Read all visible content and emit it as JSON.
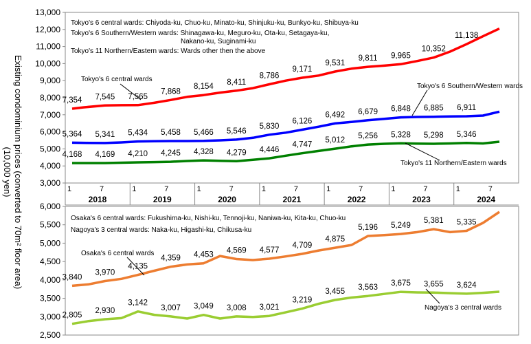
{
  "y_axis_label": "Existing condominium prices (converted to 70m² floor area)",
  "y_axis_unit": "(10,000 yen)",
  "chart_data": [
    {
      "type": "line",
      "panel": "Tokyo",
      "ylim": [
        3000,
        13000
      ],
      "yticks": [
        3000,
        4000,
        5000,
        6000,
        7000,
        8000,
        9000,
        10000,
        11000,
        12000,
        13000
      ],
      "ytick_labels": [
        "3,000",
        "4,000",
        "5,000",
        "6,000",
        "7,000",
        "8,000",
        "9,000",
        "10,000",
        "11,000",
        "12,000",
        "13,000"
      ],
      "x_start": "2018-01",
      "x_end": "2024-07",
      "legend_lines": [
        "Tokyo's 6 central wards: Chiyoda-ku, Chuo-ku, Minato-ku, Shinjuku-ku, Bunkyo-ku, Shibuya-ku",
        "Tokyo's 6 Southern/Western wards: Shinagawa-ku, Meguro-ku, Ota-ku, Setagaya-ku,",
        "Nakano-ku, Suginami-ku",
        "Tokyo's 11 Northern/Eastern wards: Wards other then the above"
      ],
      "series": [
        {
          "name": "Tokyo's 6 central wards",
          "color": "#ff0000",
          "values": [
            [
              "2018-01",
              7354
            ],
            [
              "2018-03",
              7430
            ],
            [
              "2018-07",
              7545
            ],
            [
              "2018-10",
              7560
            ],
            [
              "2019-01",
              7565
            ],
            [
              "2019-04",
              7700
            ],
            [
              "2019-07",
              7868
            ],
            [
              "2019-10",
              8050
            ],
            [
              "2020-01",
              8154
            ],
            [
              "2020-04",
              8300
            ],
            [
              "2020-07",
              8411
            ],
            [
              "2020-10",
              8560
            ],
            [
              "2021-01",
              8786
            ],
            [
              "2021-04",
              9000
            ],
            [
              "2021-07",
              9171
            ],
            [
              "2021-10",
              9300
            ],
            [
              "2022-01",
              9531
            ],
            [
              "2022-04",
              9700
            ],
            [
              "2022-07",
              9811
            ],
            [
              "2022-10",
              9880
            ],
            [
              "2023-01",
              9965
            ],
            [
              "2023-04",
              10150
            ],
            [
              "2023-07",
              10352
            ],
            [
              "2023-10",
              10700
            ],
            [
              "2024-01",
              11138
            ],
            [
              "2024-04",
              11600
            ],
            [
              "2024-07",
              12050
            ]
          ],
          "point_labels": [
            [
              "2018-01",
              "7,354"
            ],
            [
              "2018-07",
              "7,545"
            ],
            [
              "2019-01",
              "7,565"
            ],
            [
              "2019-07",
              "7,868"
            ],
            [
              "2020-01",
              "8,154"
            ],
            [
              "2020-07",
              "8,411"
            ],
            [
              "2021-01",
              "8,786"
            ],
            [
              "2021-07",
              "9,171"
            ],
            [
              "2022-01",
              "9,531"
            ],
            [
              "2022-07",
              "9,811"
            ],
            [
              "2023-01",
              "9,965"
            ],
            [
              "2023-07",
              "10,352"
            ],
            [
              "2024-01",
              "11,138"
            ]
          ]
        },
        {
          "name": "Tokyo's 6 Southern/Western wards",
          "color": "#0000ff",
          "values": [
            [
              "2018-01",
              5364
            ],
            [
              "2018-04",
              5350
            ],
            [
              "2018-07",
              5341
            ],
            [
              "2018-10",
              5380
            ],
            [
              "2019-01",
              5434
            ],
            [
              "2019-04",
              5450
            ],
            [
              "2019-07",
              5458
            ],
            [
              "2019-10",
              5460
            ],
            [
              "2020-01",
              5466
            ],
            [
              "2020-04",
              5500
            ],
            [
              "2020-07",
              5546
            ],
            [
              "2020-10",
              5650
            ],
            [
              "2021-01",
              5830
            ],
            [
              "2021-04",
              5950
            ],
            [
              "2021-07",
              6126
            ],
            [
              "2021-10",
              6300
            ],
            [
              "2022-01",
              6492
            ],
            [
              "2022-04",
              6580
            ],
            [
              "2022-07",
              6679
            ],
            [
              "2022-10",
              6760
            ],
            [
              "2023-01",
              6848
            ],
            [
              "2023-04",
              6870
            ],
            [
              "2023-07",
              6885
            ],
            [
              "2023-10",
              6900
            ],
            [
              "2024-01",
              6911
            ],
            [
              "2024-04",
              6950
            ],
            [
              "2024-07",
              7180
            ]
          ],
          "point_labels": [
            [
              "2018-01",
              "5,364"
            ],
            [
              "2018-07",
              "5,341"
            ],
            [
              "2019-01",
              "5,434"
            ],
            [
              "2019-07",
              "5,458"
            ],
            [
              "2020-01",
              "5,466"
            ],
            [
              "2020-07",
              "5,546"
            ],
            [
              "2021-01",
              "5,830"
            ],
            [
              "2021-07",
              "6,126"
            ],
            [
              "2022-01",
              "6,492"
            ],
            [
              "2022-07",
              "6,679"
            ],
            [
              "2023-01",
              "6,848"
            ],
            [
              "2023-07",
              "6,885"
            ],
            [
              "2024-01",
              "6,911"
            ]
          ]
        },
        {
          "name": "Tokyo's 11 Northern/Eastern wards",
          "color": "#008000",
          "values": [
            [
              "2018-01",
              4168
            ],
            [
              "2018-04",
              4170
            ],
            [
              "2018-07",
              4169
            ],
            [
              "2018-10",
              4190
            ],
            [
              "2019-01",
              4210
            ],
            [
              "2019-04",
              4225
            ],
            [
              "2019-07",
              4245
            ],
            [
              "2019-10",
              4290
            ],
            [
              "2020-01",
              4328
            ],
            [
              "2020-04",
              4300
            ],
            [
              "2020-07",
              4279
            ],
            [
              "2020-10",
              4360
            ],
            [
              "2021-01",
              4446
            ],
            [
              "2021-04",
              4600
            ],
            [
              "2021-07",
              4747
            ],
            [
              "2021-10",
              4880
            ],
            [
              "2022-01",
              5012
            ],
            [
              "2022-04",
              5150
            ],
            [
              "2022-07",
              5256
            ],
            [
              "2022-10",
              5300
            ],
            [
              "2023-01",
              5328
            ],
            [
              "2023-04",
              5310
            ],
            [
              "2023-07",
              5298
            ],
            [
              "2023-10",
              5320
            ],
            [
              "2024-01",
              5346
            ],
            [
              "2024-04",
              5320
            ],
            [
              "2024-07",
              5420
            ]
          ],
          "point_labels": [
            [
              "2018-01",
              "4,168"
            ],
            [
              "2018-07",
              "4,169"
            ],
            [
              "2019-01",
              "4,210"
            ],
            [
              "2019-07",
              "4,245"
            ],
            [
              "2020-01",
              "4,328"
            ],
            [
              "2020-07",
              "4,279"
            ],
            [
              "2021-01",
              "4,446"
            ],
            [
              "2021-07",
              "4,747"
            ],
            [
              "2022-01",
              "5,012"
            ],
            [
              "2022-07",
              "5,256"
            ],
            [
              "2023-01",
              "5,328"
            ],
            [
              "2023-07",
              "5,298"
            ],
            [
              "2024-01",
              "5,346"
            ]
          ]
        }
      ]
    },
    {
      "type": "line",
      "panel": "Osaka/Nagoya",
      "ylim": [
        2500,
        6000
      ],
      "yticks": [
        2500,
        3000,
        3500,
        4000,
        4500,
        5000,
        5500,
        6000
      ],
      "ytick_labels": [
        "2,500",
        "3,000",
        "3,500",
        "4,000",
        "4,500",
        "5,000",
        "5,500",
        "6,000"
      ],
      "x_start": "2018-01",
      "x_end": "2024-07",
      "legend_lines": [
        "Osaka's 6 central wards: Fukushima-ku, Nishi-ku, Tennoji-ku, Naniwa-ku, Kita-ku, Chuo-ku",
        "Nagoya's 3 central wards: Naka-ku, Higashi-ku, Chikusa-ku"
      ],
      "series": [
        {
          "name": "Osaka's 6 central wards",
          "color": "#ed7d31",
          "values": [
            [
              "2018-01",
              3840
            ],
            [
              "2018-04",
              3880
            ],
            [
              "2018-07",
              3970
            ],
            [
              "2018-10",
              4030
            ],
            [
              "2019-01",
              4135
            ],
            [
              "2019-04",
              4250
            ],
            [
              "2019-07",
              4359
            ],
            [
              "2019-10",
              4420
            ],
            [
              "2020-01",
              4453
            ],
            [
              "2020-04",
              4650
            ],
            [
              "2020-07",
              4569
            ],
            [
              "2020-10",
              4540
            ],
            [
              "2021-01",
              4577
            ],
            [
              "2021-04",
              4640
            ],
            [
              "2021-07",
              4709
            ],
            [
              "2021-10",
              4800
            ],
            [
              "2022-01",
              4875
            ],
            [
              "2022-04",
              4950
            ],
            [
              "2022-07",
              5196
            ],
            [
              "2022-10",
              5220
            ],
            [
              "2023-01",
              5249
            ],
            [
              "2023-04",
              5300
            ],
            [
              "2023-07",
              5381
            ],
            [
              "2023-10",
              5300
            ],
            [
              "2024-01",
              5335
            ],
            [
              "2024-04",
              5550
            ],
            [
              "2024-07",
              5850
            ]
          ],
          "point_labels": [
            [
              "2018-01",
              "3,840"
            ],
            [
              "2018-07",
              "3,970"
            ],
            [
              "2019-01",
              "4,135"
            ],
            [
              "2019-07",
              "4,359"
            ],
            [
              "2020-01",
              "4,453"
            ],
            [
              "2020-07",
              "4,569"
            ],
            [
              "2021-01",
              "4,577"
            ],
            [
              "2021-07",
              "4,709"
            ],
            [
              "2022-01",
              "4,875"
            ],
            [
              "2022-07",
              "5,196"
            ],
            [
              "2023-01",
              "5,249"
            ],
            [
              "2023-07",
              "5,381"
            ],
            [
              "2024-01",
              "5,335"
            ]
          ]
        },
        {
          "name": "Nagoya's 3 central wards",
          "color": "#9acd32",
          "values": [
            [
              "2018-01",
              2805
            ],
            [
              "2018-04",
              2880
            ],
            [
              "2018-07",
              2930
            ],
            [
              "2018-10",
              2960
            ],
            [
              "2019-01",
              3142
            ],
            [
              "2019-04",
              3050
            ],
            [
              "2019-07",
              3007
            ],
            [
              "2019-10",
              2950
            ],
            [
              "2020-01",
              3049
            ],
            [
              "2020-04",
              2950
            ],
            [
              "2020-07",
              3008
            ],
            [
              "2020-10",
              2990
            ],
            [
              "2021-01",
              3021
            ],
            [
              "2021-04",
              3120
            ],
            [
              "2021-07",
              3219
            ],
            [
              "2021-10",
              3350
            ],
            [
              "2022-01",
              3455
            ],
            [
              "2022-04",
              3520
            ],
            [
              "2022-07",
              3563
            ],
            [
              "2022-10",
              3620
            ],
            [
              "2023-01",
              3675
            ],
            [
              "2023-04",
              3660
            ],
            [
              "2023-07",
              3655
            ],
            [
              "2023-10",
              3640
            ],
            [
              "2024-01",
              3624
            ],
            [
              "2024-04",
              3650
            ],
            [
              "2024-07",
              3680
            ]
          ],
          "point_labels": [
            [
              "2018-01",
              "2,805"
            ],
            [
              "2018-07",
              "2,930"
            ],
            [
              "2019-01",
              "3,142"
            ],
            [
              "2019-07",
              "3,007"
            ],
            [
              "2020-01",
              "3,049"
            ],
            [
              "2020-07",
              "3,008"
            ],
            [
              "2021-01",
              "3,021"
            ],
            [
              "2021-07",
              "3,219"
            ],
            [
              "2022-01",
              "3,455"
            ],
            [
              "2022-07",
              "3,563"
            ],
            [
              "2023-01",
              "3,675"
            ],
            [
              "2023-07",
              "3,655"
            ],
            [
              "2024-01",
              "3,624"
            ]
          ]
        }
      ]
    }
  ],
  "x_axis": {
    "years": [
      "2018",
      "2019",
      "2020",
      "2021",
      "2022",
      "2023",
      "2024"
    ],
    "month_ticks": [
      "1",
      "7"
    ]
  }
}
